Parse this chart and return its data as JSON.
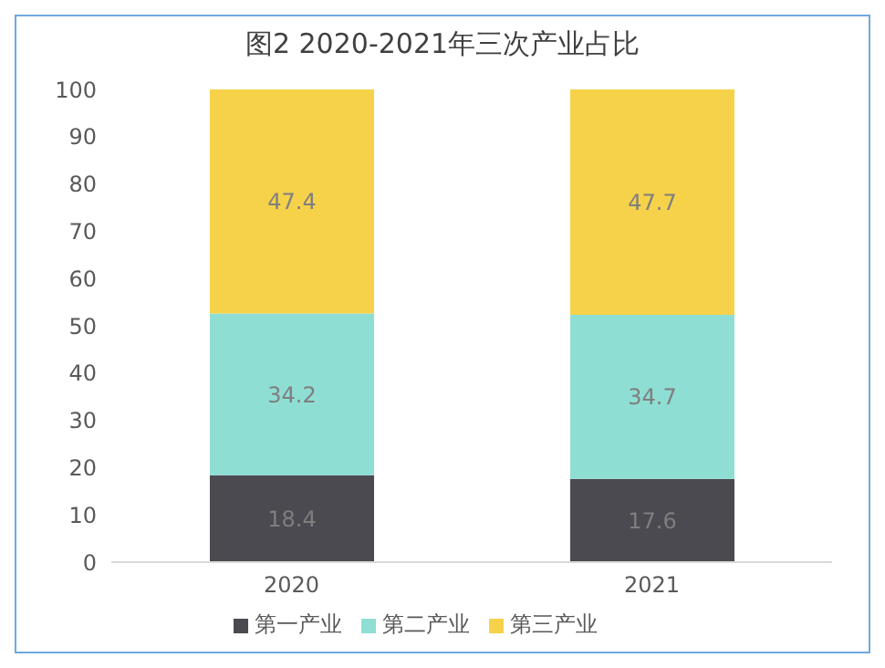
{
  "chart_data": {
    "type": "bar",
    "title": "图2  2020-2021年三次产业占比",
    "categories": [
      "2020",
      "2021"
    ],
    "stacked": true,
    "series": [
      {
        "name": "第一产业",
        "color": "#4a4a50",
        "values": [
          18.4,
          17.6
        ]
      },
      {
        "name": "第二产业",
        "color": "#8fded4",
        "values": [
          34.2,
          34.7
        ]
      },
      {
        "name": "第三产业",
        "color": "#f6d24a",
        "values": [
          47.4,
          47.7
        ]
      }
    ],
    "ylim": [
      0,
      100
    ],
    "yticks": [
      0,
      10,
      20,
      30,
      40,
      50,
      60,
      70,
      80,
      90,
      100
    ],
    "grid": false,
    "legend": "bottom",
    "data_labels": true
  }
}
